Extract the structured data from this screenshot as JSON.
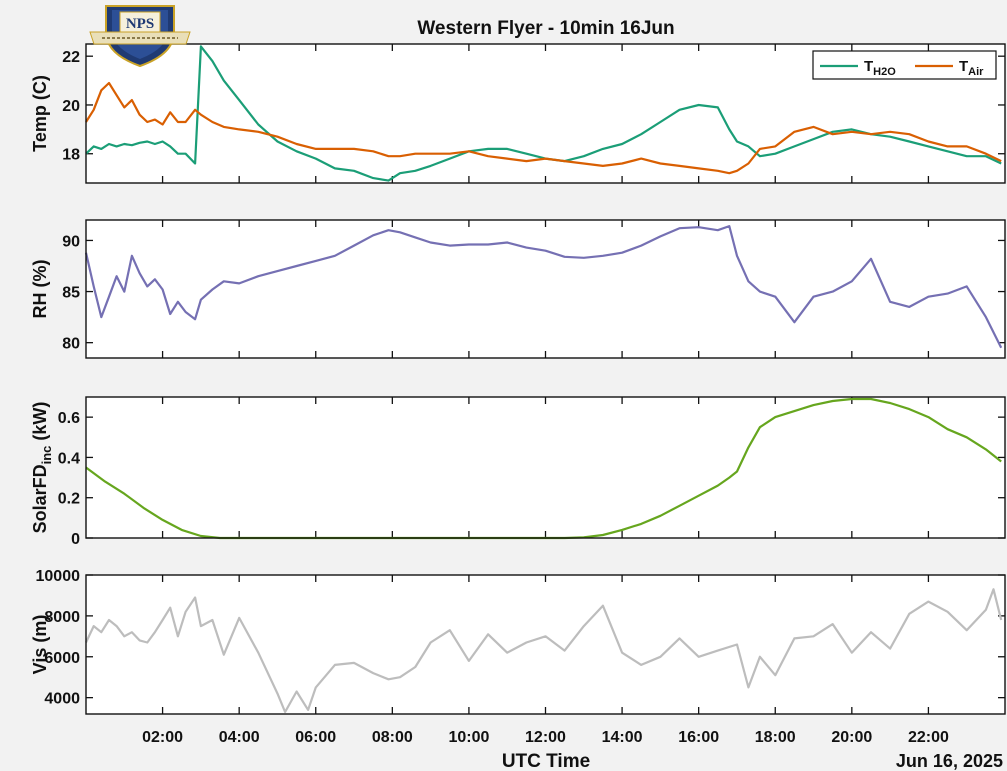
{
  "title": "Western Flyer - 10min 16Jun",
  "logo": {
    "text": "NPS"
  },
  "x_axis": {
    "label": "UTC Time",
    "date_label": "Jun 16, 2025",
    "ticks": [
      "02:00",
      "04:00",
      "06:00",
      "08:00",
      "10:00",
      "12:00",
      "14:00",
      "16:00",
      "18:00",
      "20:00",
      "22:00"
    ]
  },
  "colors": {
    "water": "#1b9e77",
    "air": "#d95f02",
    "rh": "#7570b3",
    "solar": "#66a61e",
    "vis": "#bdbdbd"
  },
  "chart_data": [
    {
      "type": "line",
      "ylabel": "Temp (C)",
      "xlim": [
        0,
        24
      ],
      "ylim": [
        16.8,
        22.5
      ],
      "yticks": [
        18,
        20,
        22
      ],
      "legend": {
        "placement": "top-right"
      },
      "series": [
        {
          "name": "T_H2O",
          "name_main": "T",
          "name_sub": "H2O",
          "color_key": "water",
          "x": [
            0,
            0.2,
            0.4,
            0.6,
            0.8,
            1.0,
            1.2,
            1.4,
            1.6,
            1.8,
            2.0,
            2.2,
            2.4,
            2.6,
            2.85,
            3.0,
            3.3,
            3.6,
            4.0,
            4.5,
            5.0,
            5.5,
            6.0,
            6.5,
            7.0,
            7.5,
            7.9,
            8.2,
            8.6,
            9.0,
            9.5,
            10.0,
            10.5,
            11.0,
            11.5,
            12.0,
            12.5,
            13.0,
            13.5,
            14.0,
            14.5,
            15.0,
            15.5,
            16.0,
            16.5,
            16.8,
            17.0,
            17.3,
            17.6,
            18.0,
            18.5,
            19.0,
            19.5,
            20.0,
            20.5,
            21.0,
            21.5,
            22.0,
            22.5,
            23.0,
            23.5,
            23.9
          ],
          "y": [
            18.0,
            18.3,
            18.2,
            18.4,
            18.3,
            18.4,
            18.35,
            18.45,
            18.5,
            18.4,
            18.5,
            18.3,
            18.0,
            18.0,
            17.6,
            22.4,
            21.8,
            21.0,
            20.2,
            19.2,
            18.5,
            18.1,
            17.8,
            17.4,
            17.3,
            17.0,
            16.9,
            17.2,
            17.3,
            17.5,
            17.8,
            18.1,
            18.2,
            18.2,
            18.0,
            17.8,
            17.7,
            17.9,
            18.2,
            18.4,
            18.8,
            19.3,
            19.8,
            20.0,
            19.9,
            19.0,
            18.5,
            18.3,
            17.9,
            18.0,
            18.3,
            18.6,
            18.9,
            19.0,
            18.8,
            18.7,
            18.5,
            18.3,
            18.1,
            17.9,
            17.9,
            17.6
          ]
        },
        {
          "name": "T_Air",
          "name_main": "T",
          "name_sub": "Air",
          "color_key": "air",
          "x": [
            0,
            0.2,
            0.4,
            0.6,
            0.8,
            1.0,
            1.2,
            1.4,
            1.6,
            1.8,
            2.0,
            2.2,
            2.4,
            2.6,
            2.85,
            3.0,
            3.3,
            3.6,
            4.0,
            4.5,
            5.0,
            5.5,
            6.0,
            6.5,
            7.0,
            7.5,
            7.9,
            8.2,
            8.6,
            9.0,
            9.5,
            10.0,
            10.5,
            11.0,
            11.5,
            12.0,
            12.5,
            13.0,
            13.5,
            14.0,
            14.5,
            15.0,
            15.5,
            16.0,
            16.5,
            16.8,
            17.0,
            17.3,
            17.6,
            18.0,
            18.5,
            19.0,
            19.5,
            20.0,
            20.5,
            21.0,
            21.5,
            22.0,
            22.5,
            23.0,
            23.5,
            23.9
          ],
          "y": [
            19.3,
            19.8,
            20.6,
            20.9,
            20.4,
            19.9,
            20.2,
            19.6,
            19.3,
            19.4,
            19.2,
            19.7,
            19.3,
            19.3,
            19.8,
            19.6,
            19.3,
            19.1,
            19.0,
            18.9,
            18.7,
            18.4,
            18.2,
            18.2,
            18.2,
            18.1,
            17.9,
            17.9,
            18.0,
            18.0,
            18.0,
            18.1,
            17.9,
            17.8,
            17.7,
            17.8,
            17.7,
            17.6,
            17.5,
            17.6,
            17.8,
            17.6,
            17.5,
            17.4,
            17.3,
            17.2,
            17.3,
            17.6,
            18.2,
            18.3,
            18.9,
            19.1,
            18.8,
            18.9,
            18.8,
            18.9,
            18.8,
            18.5,
            18.3,
            18.3,
            18.0,
            17.7
          ]
        }
      ]
    },
    {
      "type": "line",
      "ylabel": "RH (%)",
      "xlim": [
        0,
        24
      ],
      "ylim": [
        78.5,
        92
      ],
      "yticks": [
        80,
        85,
        90
      ],
      "series": [
        {
          "color_key": "rh",
          "x": [
            0,
            0.2,
            0.4,
            0.6,
            0.8,
            1.0,
            1.2,
            1.4,
            1.6,
            1.8,
            2.0,
            2.2,
            2.4,
            2.6,
            2.85,
            3.0,
            3.3,
            3.6,
            4.0,
            4.5,
            5.0,
            5.5,
            6.0,
            6.5,
            7.0,
            7.5,
            7.9,
            8.2,
            8.6,
            9.0,
            9.5,
            10.0,
            10.5,
            11.0,
            11.5,
            12.0,
            12.5,
            13.0,
            13.5,
            14.0,
            14.5,
            15.0,
            15.5,
            16.0,
            16.5,
            16.8,
            17.0,
            17.3,
            17.6,
            18.0,
            18.5,
            19.0,
            19.5,
            20.0,
            20.5,
            21.0,
            21.5,
            22.0,
            22.5,
            23.0,
            23.5,
            23.9
          ],
          "y": [
            88.8,
            85.5,
            82.5,
            84.5,
            86.5,
            85.0,
            88.5,
            86.8,
            85.5,
            86.2,
            85.2,
            82.8,
            84.0,
            83.0,
            82.3,
            84.2,
            85.2,
            86.0,
            85.8,
            86.5,
            87.0,
            87.5,
            88.0,
            88.5,
            89.5,
            90.5,
            91.0,
            90.8,
            90.3,
            89.8,
            89.5,
            89.6,
            89.6,
            89.8,
            89.3,
            89.0,
            88.4,
            88.3,
            88.5,
            88.8,
            89.5,
            90.4,
            91.2,
            91.3,
            91.0,
            91.4,
            88.5,
            86.0,
            85.0,
            84.5,
            82.0,
            84.5,
            85.0,
            86.0,
            88.2,
            84.0,
            83.5,
            84.5,
            84.8,
            85.5,
            82.5,
            79.5
          ]
        }
      ]
    },
    {
      "type": "line",
      "ylabel": "SolarFD_inc (kW)",
      "ylabel_main": "SolarFD",
      "ylabel_sub": "inc",
      "ylabel_unit": "(kW)",
      "xlim": [
        0,
        24
      ],
      "ylim": [
        0,
        0.7
      ],
      "yticks": [
        0,
        0.2,
        0.4,
        0.6
      ],
      "ytick_labels": [
        "0",
        "0.2",
        "0.4",
        "0.6"
      ],
      "series": [
        {
          "color_key": "solar",
          "x": [
            0,
            0.5,
            1.0,
            1.5,
            2.0,
            2.5,
            3.0,
            3.5,
            4.0,
            6.0,
            8.0,
            10.0,
            12.0,
            12.5,
            13.0,
            13.5,
            14.0,
            14.5,
            15.0,
            15.5,
            16.0,
            16.5,
            16.8,
            17.0,
            17.3,
            17.6,
            18.0,
            18.5,
            19.0,
            19.5,
            20.0,
            20.5,
            21.0,
            21.5,
            22.0,
            22.5,
            23.0,
            23.5,
            23.9
          ],
          "y": [
            0.35,
            0.28,
            0.22,
            0.15,
            0.09,
            0.04,
            0.01,
            0.0,
            0.0,
            0.0,
            0.0,
            0.0,
            0.0,
            0.0,
            0.003,
            0.015,
            0.04,
            0.07,
            0.11,
            0.16,
            0.21,
            0.26,
            0.3,
            0.33,
            0.45,
            0.55,
            0.6,
            0.63,
            0.66,
            0.68,
            0.69,
            0.69,
            0.67,
            0.64,
            0.6,
            0.54,
            0.5,
            0.44,
            0.38
          ]
        }
      ]
    },
    {
      "type": "line",
      "ylabel": "Vis (m)",
      "xlim": [
        0,
        24
      ],
      "ylim": [
        3200,
        10000
      ],
      "yticks": [
        4000,
        6000,
        8000,
        10000
      ],
      "series": [
        {
          "color_key": "vis",
          "x": [
            0,
            0.2,
            0.4,
            0.6,
            0.8,
            1.0,
            1.2,
            1.4,
            1.6,
            1.8,
            2.0,
            2.2,
            2.4,
            2.6,
            2.85,
            3.0,
            3.3,
            3.6,
            4.0,
            4.5,
            5.0,
            5.2,
            5.5,
            5.8,
            6.0,
            6.5,
            7.0,
            7.5,
            7.9,
            8.2,
            8.6,
            9.0,
            9.5,
            10.0,
            10.5,
            11.0,
            11.5,
            12.0,
            12.5,
            13.0,
            13.5,
            14.0,
            14.5,
            15.0,
            15.5,
            16.0,
            16.5,
            17.0,
            17.3,
            17.6,
            18.0,
            18.5,
            19.0,
            19.5,
            20.0,
            20.5,
            21.0,
            21.5,
            22.0,
            22.5,
            23.0,
            23.5,
            23.7,
            23.9
          ],
          "y": [
            6700,
            7500,
            7200,
            7800,
            7500,
            7000,
            7200,
            6800,
            6700,
            7200,
            7800,
            8400,
            7000,
            8200,
            8900,
            7500,
            7800,
            6100,
            7900,
            6200,
            4200,
            3300,
            4300,
            3400,
            4500,
            5600,
            5700,
            5200,
            4900,
            5000,
            5500,
            6700,
            7300,
            5800,
            7100,
            6200,
            6700,
            7000,
            6300,
            7500,
            8500,
            6200,
            5600,
            6000,
            6900,
            6000,
            6300,
            6600,
            4500,
            6000,
            5100,
            6900,
            7000,
            7600,
            6200,
            7200,
            6400,
            8100,
            8700,
            8200,
            7300,
            8300,
            9300,
            7800
          ]
        }
      ]
    }
  ]
}
